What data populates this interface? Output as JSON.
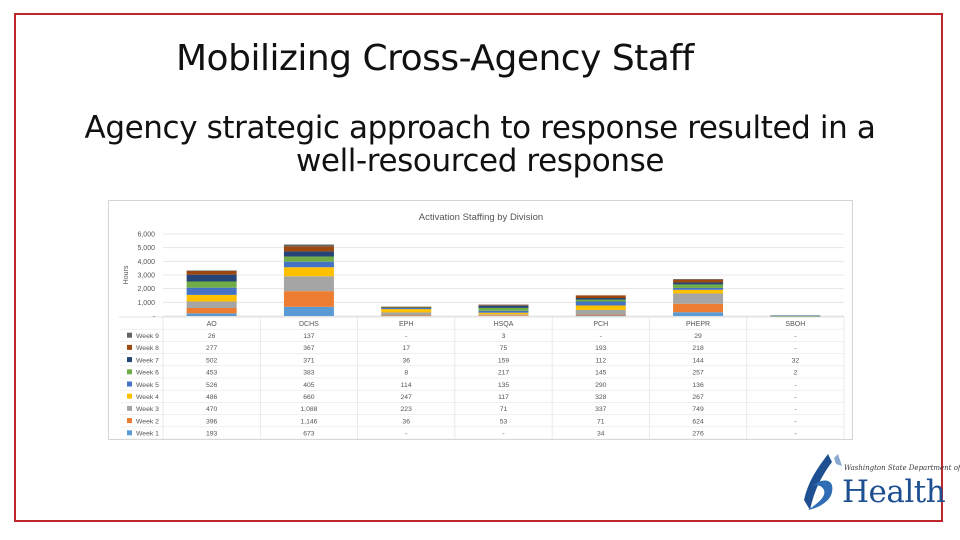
{
  "slide": {
    "title": "Mobilizing Cross-Agency Staff",
    "subtitle": "Agency strategic approach to response resulted in a well-resourced response"
  },
  "logo": {
    "small_text": "Washington State Department of",
    "word": "Health"
  },
  "colors": {
    "frame_border": "#c0272d",
    "logo_blue": "#1d4f91"
  },
  "chart_data": {
    "type": "bar",
    "stacked": true,
    "title": "Activation Staffing by Division",
    "ylabel": "Hours",
    "xlabel": "",
    "ylim": [
      0,
      6000
    ],
    "yticks": [
      "-",
      "1,000",
      "2,000",
      "3,000",
      "4,000",
      "5,000",
      "6,000"
    ],
    "grid": true,
    "legend": "table-left",
    "categories": [
      "AO",
      "DCHS",
      "EPH",
      "HSQA",
      "PCH",
      "PHEPR",
      "SBOH"
    ],
    "series": [
      {
        "name": "Week 1",
        "color": "#5b9bd5",
        "values": [
          193,
          673,
          0,
          0,
          34,
          276,
          0
        ],
        "labels": [
          "193",
          "673",
          "-",
          "-",
          "34",
          "276",
          "-"
        ]
      },
      {
        "name": "Week 2",
        "color": "#ed7d31",
        "values": [
          396,
          1146,
          36,
          53,
          71,
          624,
          0
        ],
        "labels": [
          "396",
          "1,146",
          "36",
          "53",
          "71",
          "624",
          "-"
        ]
      },
      {
        "name": "Week 3",
        "color": "#a5a5a5",
        "values": [
          470,
          1088,
          223,
          71,
          337,
          749,
          0
        ],
        "labels": [
          "470",
          "1,088",
          "223",
          "71",
          "337",
          "749",
          "-"
        ]
      },
      {
        "name": "Week 4",
        "color": "#ffc000",
        "values": [
          486,
          660,
          247,
          117,
          328,
          267,
          0
        ],
        "labels": [
          "486",
          "660",
          "247",
          "117",
          "328",
          "267",
          "-"
        ]
      },
      {
        "name": "Week 5",
        "color": "#4472c4",
        "values": [
          526,
          405,
          114,
          135,
          290,
          136,
          0
        ],
        "labels": [
          "526",
          "405",
          "114",
          "135",
          "290",
          "136",
          "-"
        ]
      },
      {
        "name": "Week 6",
        "color": "#70ad47",
        "values": [
          453,
          383,
          8,
          217,
          145,
          257,
          2
        ],
        "labels": [
          "453",
          "383",
          "8",
          "217",
          "145",
          "257",
          "2"
        ]
      },
      {
        "name": "Week 7",
        "color": "#264478",
        "values": [
          502,
          371,
          36,
          159,
          112,
          144,
          32
        ],
        "labels": [
          "502",
          "371",
          "36",
          "159",
          "112",
          "144",
          "32"
        ]
      },
      {
        "name": "Week 8",
        "color": "#9e480e",
        "values": [
          277,
          367,
          17,
          75,
          193,
          218,
          0
        ],
        "labels": [
          "277",
          "367",
          "17",
          "75",
          "193",
          "218",
          "-"
        ]
      },
      {
        "name": "Week 9",
        "color": "#636363",
        "values": [
          26,
          137,
          0,
          3,
          0,
          29,
          0
        ],
        "labels": [
          "26",
          "137",
          "-",
          "3",
          "-",
          "29",
          "-"
        ]
      }
    ]
  }
}
